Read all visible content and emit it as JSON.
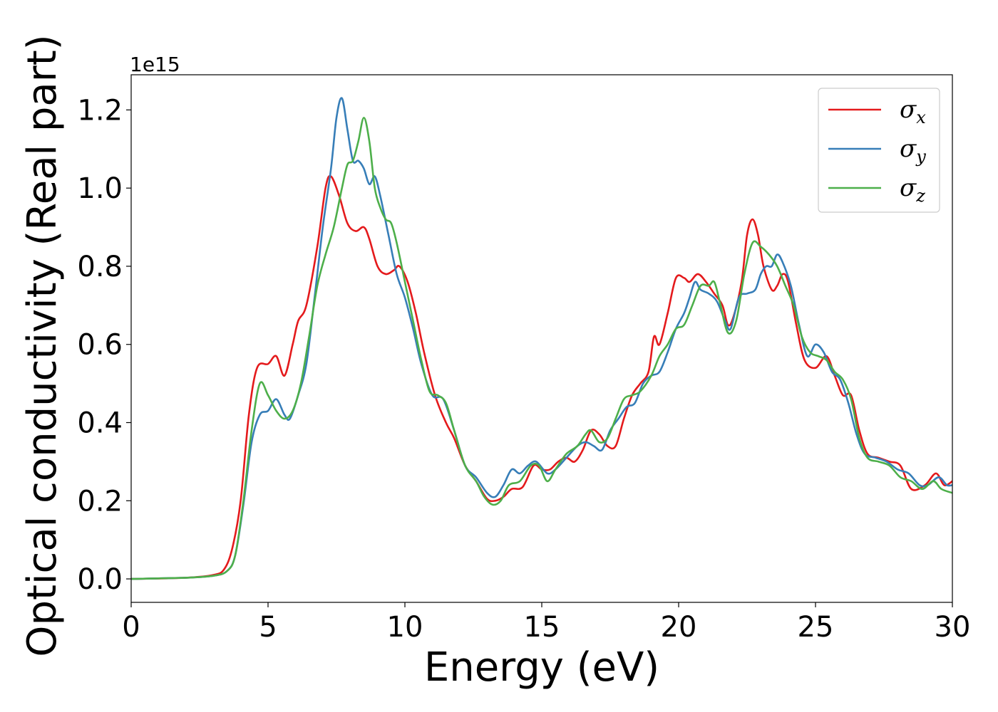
{
  "chart_data": {
    "type": "line",
    "xlabel": "Energy (eV)",
    "ylabel": "Optical conductivity (Real part)",
    "y_offset_label": "1e15",
    "xlim": [
      0,
      30
    ],
    "ylim": [
      -0.06,
      1.29
    ],
    "x_ticks": [
      0,
      5,
      10,
      15,
      20,
      25,
      30
    ],
    "x_tick_labels": [
      "0",
      "5",
      "10",
      "15",
      "20",
      "25",
      "30"
    ],
    "y_ticks": [
      0.0,
      0.2,
      0.4,
      0.6,
      0.8,
      1.0,
      1.2
    ],
    "y_tick_labels": [
      "0.0",
      "0.2",
      "0.4",
      "0.6",
      "0.8",
      "1.0",
      "1.2"
    ],
    "grid": false,
    "legend_position": "top-right",
    "series": [
      {
        "name": "σx",
        "symbol": "σ",
        "subscript": "x",
        "color": "#e41a1c",
        "points": [
          [
            0,
            0
          ],
          [
            2,
            0.003
          ],
          [
            3,
            0.01
          ],
          [
            3.4,
            0.025
          ],
          [
            3.7,
            0.08
          ],
          [
            4,
            0.2
          ],
          [
            4.3,
            0.42
          ],
          [
            4.6,
            0.54
          ],
          [
            5,
            0.55
          ],
          [
            5.3,
            0.57
          ],
          [
            5.6,
            0.52
          ],
          [
            5.9,
            0.6
          ],
          [
            6.1,
            0.66
          ],
          [
            6.4,
            0.7
          ],
          [
            6.8,
            0.85
          ],
          [
            7.1,
            1.0
          ],
          [
            7.3,
            1.03
          ],
          [
            7.6,
            0.98
          ],
          [
            7.9,
            0.91
          ],
          [
            8.2,
            0.89
          ],
          [
            8.5,
            0.9
          ],
          [
            8.7,
            0.87
          ],
          [
            9,
            0.8
          ],
          [
            9.3,
            0.78
          ],
          [
            9.6,
            0.79
          ],
          [
            9.8,
            0.8
          ],
          [
            10.1,
            0.76
          ],
          [
            10.4,
            0.68
          ],
          [
            10.7,
            0.58
          ],
          [
            11.1,
            0.47
          ],
          [
            11.5,
            0.4
          ],
          [
            11.8,
            0.36
          ],
          [
            12.2,
            0.29
          ],
          [
            12.6,
            0.25
          ],
          [
            13,
            0.205
          ],
          [
            13.3,
            0.2
          ],
          [
            13.6,
            0.21
          ],
          [
            13.9,
            0.23
          ],
          [
            14.3,
            0.235
          ],
          [
            14.7,
            0.29
          ],
          [
            15,
            0.28
          ],
          [
            15.3,
            0.28
          ],
          [
            15.6,
            0.3
          ],
          [
            15.9,
            0.31
          ],
          [
            16.2,
            0.3
          ],
          [
            16.5,
            0.33
          ],
          [
            16.8,
            0.38
          ],
          [
            17.1,
            0.37
          ],
          [
            17.4,
            0.34
          ],
          [
            17.7,
            0.34
          ],
          [
            18,
            0.41
          ],
          [
            18.3,
            0.47
          ],
          [
            18.6,
            0.5
          ],
          [
            18.9,
            0.53
          ],
          [
            19.1,
            0.62
          ],
          [
            19.3,
            0.6
          ],
          [
            19.6,
            0.68
          ],
          [
            19.9,
            0.77
          ],
          [
            20.2,
            0.77
          ],
          [
            20.4,
            0.76
          ],
          [
            20.7,
            0.78
          ],
          [
            21,
            0.76
          ],
          [
            21.3,
            0.73
          ],
          [
            21.6,
            0.7
          ],
          [
            21.8,
            0.65
          ],
          [
            22,
            0.67
          ],
          [
            22.3,
            0.76
          ],
          [
            22.5,
            0.88
          ],
          [
            22.7,
            0.92
          ],
          [
            22.9,
            0.88
          ],
          [
            23.1,
            0.8
          ],
          [
            23.4,
            0.74
          ],
          [
            23.6,
            0.75
          ],
          [
            23.8,
            0.78
          ],
          [
            24,
            0.76
          ],
          [
            24.3,
            0.65
          ],
          [
            24.6,
            0.56
          ],
          [
            25,
            0.54
          ],
          [
            25.4,
            0.57
          ],
          [
            25.7,
            0.52
          ],
          [
            26,
            0.47
          ],
          [
            26.3,
            0.47
          ],
          [
            26.6,
            0.38
          ],
          [
            26.9,
            0.32
          ],
          [
            27.3,
            0.31
          ],
          [
            27.7,
            0.3
          ],
          [
            28.1,
            0.29
          ],
          [
            28.5,
            0.23
          ],
          [
            29,
            0.24
          ],
          [
            29.4,
            0.27
          ],
          [
            29.7,
            0.24
          ],
          [
            30,
            0.25
          ]
        ]
      },
      {
        "name": "σy",
        "symbol": "σ",
        "subscript": "y",
        "color": "#377eb8",
        "points": [
          [
            0,
            0
          ],
          [
            2,
            0.003
          ],
          [
            3,
            0.008
          ],
          [
            3.5,
            0.02
          ],
          [
            3.8,
            0.06
          ],
          [
            4.1,
            0.19
          ],
          [
            4.4,
            0.35
          ],
          [
            4.7,
            0.42
          ],
          [
            5,
            0.43
          ],
          [
            5.3,
            0.46
          ],
          [
            5.6,
            0.42
          ],
          [
            5.8,
            0.41
          ],
          [
            6.1,
            0.47
          ],
          [
            6.4,
            0.55
          ],
          [
            6.7,
            0.72
          ],
          [
            7,
            0.9
          ],
          [
            7.3,
            1.05
          ],
          [
            7.5,
            1.18
          ],
          [
            7.7,
            1.23
          ],
          [
            7.9,
            1.15
          ],
          [
            8.1,
            1.07
          ],
          [
            8.3,
            1.07
          ],
          [
            8.5,
            1.05
          ],
          [
            8.7,
            1.01
          ],
          [
            8.9,
            1.03
          ],
          [
            9.1,
            0.98
          ],
          [
            9.4,
            0.88
          ],
          [
            9.7,
            0.78
          ],
          [
            10,
            0.72
          ],
          [
            10.3,
            0.64
          ],
          [
            10.6,
            0.55
          ],
          [
            11,
            0.47
          ],
          [
            11.4,
            0.46
          ],
          [
            11.8,
            0.38
          ],
          [
            12.2,
            0.29
          ],
          [
            12.6,
            0.26
          ],
          [
            13,
            0.22
          ],
          [
            13.3,
            0.21
          ],
          [
            13.6,
            0.24
          ],
          [
            13.9,
            0.28
          ],
          [
            14.2,
            0.27
          ],
          [
            14.5,
            0.29
          ],
          [
            14.8,
            0.3
          ],
          [
            15.2,
            0.27
          ],
          [
            15.5,
            0.28
          ],
          [
            15.9,
            0.31
          ],
          [
            16.3,
            0.34
          ],
          [
            16.6,
            0.35
          ],
          [
            16.9,
            0.34
          ],
          [
            17.2,
            0.33
          ],
          [
            17.5,
            0.38
          ],
          [
            17.8,
            0.41
          ],
          [
            18.1,
            0.44
          ],
          [
            18.4,
            0.45
          ],
          [
            18.7,
            0.5
          ],
          [
            19,
            0.52
          ],
          [
            19.3,
            0.53
          ],
          [
            19.6,
            0.58
          ],
          [
            19.9,
            0.64
          ],
          [
            20.2,
            0.68
          ],
          [
            20.4,
            0.72
          ],
          [
            20.6,
            0.76
          ],
          [
            20.8,
            0.74
          ],
          [
            21.1,
            0.73
          ],
          [
            21.4,
            0.71
          ],
          [
            21.7,
            0.66
          ],
          [
            21.9,
            0.64
          ],
          [
            22.2,
            0.72
          ],
          [
            22.5,
            0.73
          ],
          [
            22.8,
            0.74
          ],
          [
            23,
            0.78
          ],
          [
            23.2,
            0.8
          ],
          [
            23.4,
            0.8
          ],
          [
            23.6,
            0.83
          ],
          [
            23.8,
            0.81
          ],
          [
            24.1,
            0.75
          ],
          [
            24.4,
            0.65
          ],
          [
            24.7,
            0.57
          ],
          [
            25,
            0.6
          ],
          [
            25.3,
            0.58
          ],
          [
            25.6,
            0.53
          ],
          [
            25.9,
            0.51
          ],
          [
            26.2,
            0.45
          ],
          [
            26.5,
            0.37
          ],
          [
            26.8,
            0.32
          ],
          [
            27.2,
            0.31
          ],
          [
            27.6,
            0.3
          ],
          [
            28,
            0.28
          ],
          [
            28.4,
            0.27
          ],
          [
            28.8,
            0.24
          ],
          [
            29.1,
            0.24
          ],
          [
            29.5,
            0.26
          ],
          [
            29.8,
            0.24
          ],
          [
            30,
            0.24
          ]
        ]
      },
      {
        "name": "σz",
        "symbol": "σ",
        "subscript": "z",
        "color": "#4daf4a",
        "points": [
          [
            0,
            0
          ],
          [
            2,
            0.003
          ],
          [
            3,
            0.008
          ],
          [
            3.5,
            0.02
          ],
          [
            3.8,
            0.06
          ],
          [
            4.1,
            0.2
          ],
          [
            4.4,
            0.38
          ],
          [
            4.7,
            0.5
          ],
          [
            5,
            0.47
          ],
          [
            5.3,
            0.43
          ],
          [
            5.6,
            0.41
          ],
          [
            5.9,
            0.43
          ],
          [
            6.2,
            0.5
          ],
          [
            6.5,
            0.62
          ],
          [
            6.8,
            0.75
          ],
          [
            7.1,
            0.83
          ],
          [
            7.4,
            0.9
          ],
          [
            7.7,
            1.0
          ],
          [
            7.9,
            1.06
          ],
          [
            8.1,
            1.07
          ],
          [
            8.3,
            1.12
          ],
          [
            8.5,
            1.18
          ],
          [
            8.7,
            1.12
          ],
          [
            8.9,
            1.0
          ],
          [
            9.1,
            0.95
          ],
          [
            9.3,
            0.92
          ],
          [
            9.5,
            0.91
          ],
          [
            9.7,
            0.86
          ],
          [
            10,
            0.76
          ],
          [
            10.3,
            0.66
          ],
          [
            10.6,
            0.56
          ],
          [
            10.9,
            0.48
          ],
          [
            11.2,
            0.47
          ],
          [
            11.5,
            0.45
          ],
          [
            11.8,
            0.38
          ],
          [
            12.2,
            0.29
          ],
          [
            12.6,
            0.25
          ],
          [
            12.9,
            0.21
          ],
          [
            13.2,
            0.19
          ],
          [
            13.5,
            0.2
          ],
          [
            13.8,
            0.24
          ],
          [
            14.2,
            0.25
          ],
          [
            14.6,
            0.29
          ],
          [
            14.9,
            0.29
          ],
          [
            15.2,
            0.25
          ],
          [
            15.5,
            0.28
          ],
          [
            15.9,
            0.32
          ],
          [
            16.3,
            0.34
          ],
          [
            16.6,
            0.37
          ],
          [
            16.8,
            0.38
          ],
          [
            17.1,
            0.35
          ],
          [
            17.4,
            0.36
          ],
          [
            17.7,
            0.41
          ],
          [
            18,
            0.46
          ],
          [
            18.3,
            0.47
          ],
          [
            18.6,
            0.48
          ],
          [
            19,
            0.52
          ],
          [
            19.3,
            0.57
          ],
          [
            19.6,
            0.6
          ],
          [
            19.9,
            0.64
          ],
          [
            20.2,
            0.65
          ],
          [
            20.5,
            0.7
          ],
          [
            20.8,
            0.75
          ],
          [
            21.1,
            0.75
          ],
          [
            21.3,
            0.76
          ],
          [
            21.5,
            0.71
          ],
          [
            21.8,
            0.63
          ],
          [
            22.1,
            0.66
          ],
          [
            22.4,
            0.78
          ],
          [
            22.7,
            0.86
          ],
          [
            23,
            0.85
          ],
          [
            23.3,
            0.83
          ],
          [
            23.6,
            0.8
          ],
          [
            23.9,
            0.75
          ],
          [
            24.2,
            0.7
          ],
          [
            24.5,
            0.62
          ],
          [
            24.8,
            0.58
          ],
          [
            25.1,
            0.57
          ],
          [
            25.4,
            0.56
          ],
          [
            25.7,
            0.53
          ],
          [
            26,
            0.51
          ],
          [
            26.3,
            0.46
          ],
          [
            26.6,
            0.36
          ],
          [
            26.9,
            0.31
          ],
          [
            27.3,
            0.3
          ],
          [
            27.7,
            0.29
          ],
          [
            28.1,
            0.26
          ],
          [
            28.5,
            0.25
          ],
          [
            28.9,
            0.23
          ],
          [
            29.3,
            0.25
          ],
          [
            29.6,
            0.23
          ],
          [
            30,
            0.22
          ]
        ]
      }
    ]
  }
}
